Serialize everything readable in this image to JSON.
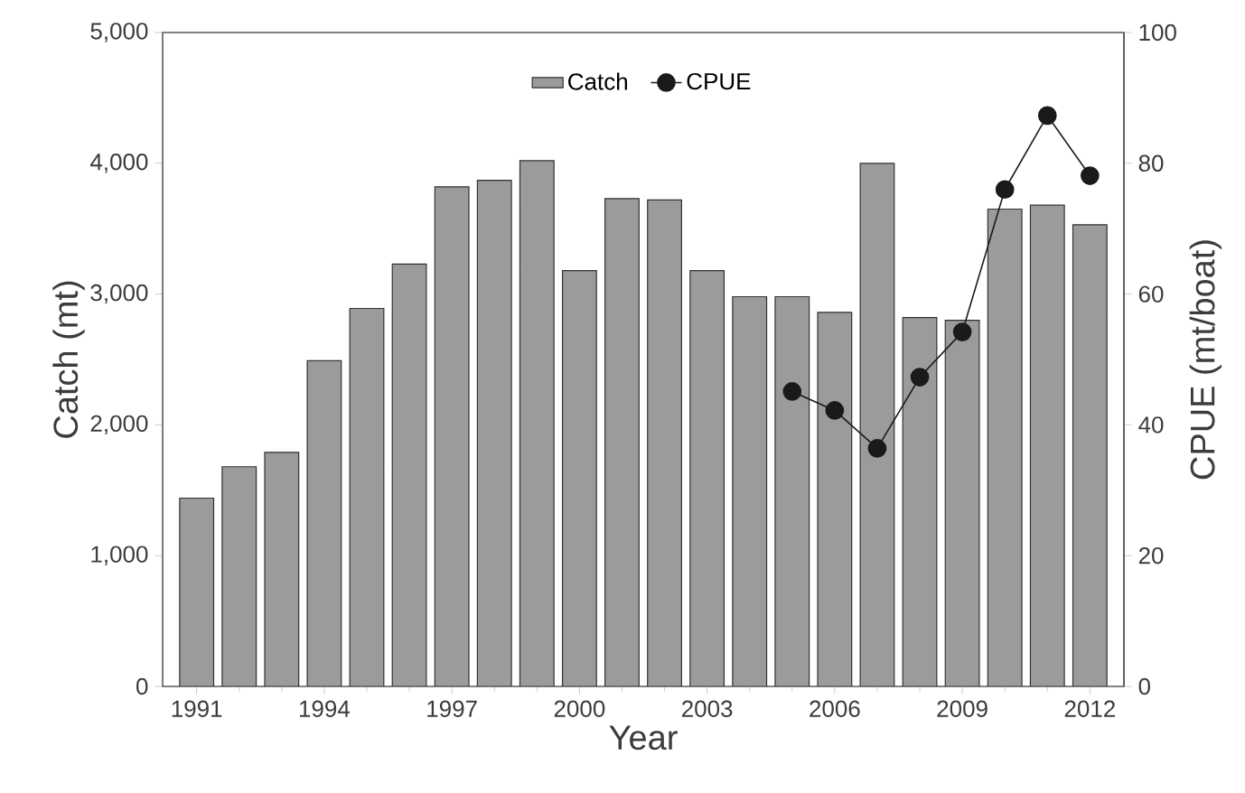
{
  "chart_data": {
    "type": "bar",
    "xlabel": "Year",
    "ylabel": "Catch (mt)",
    "y2label": "CPUE (mt/boat)",
    "x": [
      1991,
      1992,
      1993,
      1994,
      1995,
      1996,
      1997,
      1998,
      1999,
      2000,
      2001,
      2002,
      2003,
      2004,
      2005,
      2006,
      2007,
      2008,
      2009,
      2010,
      2011,
      2012
    ],
    "series": [
      {
        "name": "Catch",
        "color": "#9b9b9b",
        "values": [
          1440,
          1680,
          1790,
          2490,
          2890,
          3230,
          3820,
          3870,
          4020,
          3180,
          3730,
          3720,
          3180,
          2980,
          2980,
          2860,
          4000,
          2820,
          2800,
          3650,
          3680,
          3530
        ]
      },
      {
        "name": "CPUE",
        "type": "line",
        "axis": "y2",
        "color": "#1a1a1a",
        "x": [
          2005,
          2006,
          2007,
          2008,
          2009,
          2010,
          2011,
          2012
        ],
        "values": [
          45.1,
          42.2,
          36.4,
          47.3,
          54.2,
          76.0,
          87.3,
          78.1
        ]
      }
    ],
    "xlim": [
      1990.2,
      2012.8
    ],
    "xticks": [
      1991,
      1994,
      1997,
      2000,
      2003,
      2006,
      2009,
      2012
    ],
    "ylim": [
      0,
      5000
    ],
    "yticks": [
      0,
      {
        "value": 1000,
        "label": "1,000"
      },
      {
        "value": 2000,
        "label": "2,000"
      },
      {
        "value": 3000,
        "label": "3,000"
      },
      {
        "value": 4000,
        "label": "4,000"
      },
      {
        "value": 5000,
        "label": "5,000"
      }
    ],
    "y2lim": [
      0,
      100
    ],
    "y2ticks": [
      0,
      20,
      40,
      60,
      80,
      100
    ],
    "legend": "top",
    "marker": "circle"
  }
}
